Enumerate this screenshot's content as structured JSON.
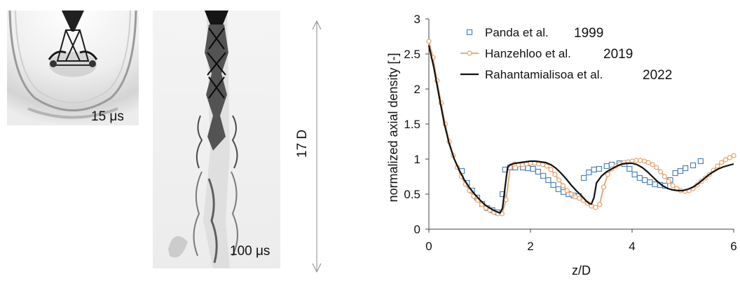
{
  "images": {
    "left_time_label": "15 μs",
    "mid_time_label": "100 μs",
    "length_label": "17 D"
  },
  "chart_data": {
    "type": "scatter",
    "xlabel": "z/D",
    "ylabel": "normalized axial density [-]",
    "xlim": [
      0,
      6
    ],
    "ylim": [
      0,
      3
    ],
    "xticks": [
      0,
      2,
      4,
      6
    ],
    "yticks": [
      0,
      0.5,
      1,
      1.5,
      2,
      2.5,
      3
    ],
    "legend_position": "top-right",
    "series": [
      {
        "name": "Panda et al.",
        "year": "1999",
        "style": "square-markers",
        "color": "#4a86c5",
        "x": [
          0.65,
          0.75,
          0.85,
          0.95,
          1.05,
          1.15,
          1.25,
          1.35,
          1.45,
          1.5,
          1.6,
          1.7,
          1.85,
          1.95,
          2.05,
          2.15,
          2.25,
          2.35,
          2.45,
          2.55,
          2.65,
          2.75,
          2.85,
          2.95,
          3.05,
          3.15,
          3.25,
          3.35,
          3.5,
          3.6,
          3.75,
          3.85,
          3.95,
          4.05,
          4.15,
          4.25,
          4.35,
          4.45,
          4.55,
          4.65,
          4.75,
          4.85,
          4.95,
          5.05,
          5.2,
          5.35
        ],
        "y": [
          0.83,
          0.66,
          0.55,
          0.45,
          0.36,
          0.3,
          0.27,
          0.24,
          0.5,
          0.85,
          0.88,
          0.88,
          0.88,
          0.87,
          0.86,
          0.82,
          0.76,
          0.7,
          0.63,
          0.57,
          0.53,
          0.5,
          0.48,
          0.47,
          0.73,
          0.81,
          0.85,
          0.86,
          0.9,
          0.92,
          0.94,
          0.93,
          0.86,
          0.78,
          0.73,
          0.7,
          0.67,
          0.64,
          0.63,
          0.62,
          0.7,
          0.8,
          0.83,
          0.87,
          0.91,
          0.97
        ]
      },
      {
        "name": "Hanzehloo et al.",
        "year": "2019",
        "style": "line-circle-markers",
        "color": "#f0a064",
        "x": [
          0,
          0.08,
          0.16,
          0.24,
          0.32,
          0.4,
          0.48,
          0.56,
          0.64,
          0.72,
          0.8,
          0.88,
          0.96,
          1.04,
          1.12,
          1.2,
          1.28,
          1.36,
          1.44,
          1.52,
          1.6,
          1.68,
          1.76,
          1.84,
          1.92,
          2.0,
          2.08,
          2.16,
          2.24,
          2.32,
          2.4,
          2.48,
          2.56,
          2.64,
          2.72,
          2.8,
          2.88,
          2.96,
          3.04,
          3.12,
          3.2,
          3.28,
          3.36,
          3.44,
          3.52,
          3.6,
          3.68,
          3.76,
          3.84,
          3.92,
          4.0,
          4.08,
          4.16,
          4.24,
          4.32,
          4.4,
          4.48,
          4.56,
          4.64,
          4.72,
          4.8,
          4.88,
          4.96,
          5.04,
          5.12,
          5.2,
          5.28,
          5.36,
          5.44,
          5.52,
          5.6,
          5.68,
          5.76,
          5.84,
          5.92,
          6.0
        ],
        "y": [
          2.68,
          2.45,
          2.12,
          1.8,
          1.5,
          1.25,
          1.05,
          0.88,
          0.75,
          0.64,
          0.55,
          0.47,
          0.41,
          0.35,
          0.3,
          0.27,
          0.24,
          0.22,
          0.22,
          0.42,
          0.88,
          0.93,
          0.92,
          0.92,
          0.93,
          0.94,
          0.94,
          0.93,
          0.92,
          0.9,
          0.85,
          0.78,
          0.7,
          0.62,
          0.55,
          0.5,
          0.46,
          0.44,
          0.41,
          0.37,
          0.33,
          0.31,
          0.35,
          0.6,
          0.78,
          0.86,
          0.9,
          0.93,
          0.95,
          0.96,
          0.97,
          0.98,
          0.98,
          0.97,
          0.95,
          0.92,
          0.88,
          0.82,
          0.75,
          0.68,
          0.62,
          0.58,
          0.55,
          0.54,
          0.55,
          0.58,
          0.63,
          0.68,
          0.73,
          0.78,
          0.84,
          0.9,
          0.95,
          0.99,
          1.02,
          1.05
        ]
      },
      {
        "name": "Rahantamialisoa et al.",
        "year": "2022",
        "style": "line",
        "color": "#111111",
        "x": [
          0,
          0.1,
          0.2,
          0.3,
          0.4,
          0.5,
          0.6,
          0.7,
          0.8,
          0.9,
          1.0,
          1.1,
          1.2,
          1.3,
          1.4,
          1.45,
          1.5,
          1.55,
          1.6,
          1.7,
          1.8,
          1.9,
          2.0,
          2.1,
          2.2,
          2.3,
          2.4,
          2.5,
          2.6,
          2.7,
          2.8,
          2.9,
          3.0,
          3.05,
          3.1,
          3.15,
          3.2,
          3.25,
          3.3,
          3.4,
          3.5,
          3.6,
          3.7,
          3.8,
          3.9,
          4.0,
          4.1,
          4.2,
          4.3,
          4.4,
          4.5,
          4.6,
          4.7,
          4.8,
          4.9,
          5.0,
          5.1,
          5.2,
          5.3,
          5.4,
          5.5,
          5.6,
          5.7,
          5.8,
          5.9,
          6.0
        ],
        "y": [
          2.62,
          2.3,
          1.9,
          1.52,
          1.22,
          1.0,
          0.84,
          0.7,
          0.59,
          0.5,
          0.42,
          0.35,
          0.3,
          0.26,
          0.23,
          0.3,
          0.6,
          0.88,
          0.92,
          0.94,
          0.95,
          0.96,
          0.97,
          0.97,
          0.96,
          0.95,
          0.92,
          0.87,
          0.8,
          0.72,
          0.63,
          0.55,
          0.48,
          0.44,
          0.4,
          0.37,
          0.36,
          0.45,
          0.66,
          0.76,
          0.82,
          0.86,
          0.9,
          0.93,
          0.94,
          0.94,
          0.92,
          0.88,
          0.82,
          0.75,
          0.68,
          0.62,
          0.58,
          0.56,
          0.55,
          0.55,
          0.57,
          0.6,
          0.65,
          0.71,
          0.77,
          0.82,
          0.86,
          0.89,
          0.91,
          0.93
        ]
      }
    ]
  }
}
